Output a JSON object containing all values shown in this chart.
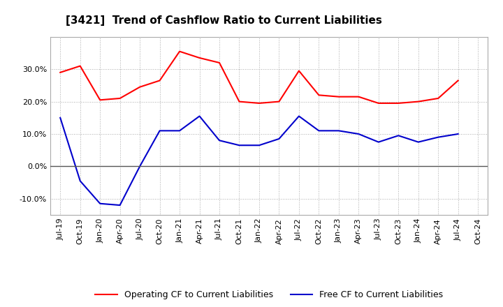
{
  "title": "[3421]  Trend of Cashflow Ratio to Current Liabilities",
  "x_labels": [
    "Jul-19",
    "Oct-19",
    "Jan-20",
    "Apr-20",
    "Jul-20",
    "Oct-20",
    "Jan-21",
    "Apr-21",
    "Jul-21",
    "Oct-21",
    "Jan-22",
    "Apr-22",
    "Jul-22",
    "Oct-22",
    "Jan-23",
    "Apr-23",
    "Jul-23",
    "Oct-23",
    "Jan-24",
    "Apr-24",
    "Jul-24",
    "Oct-24"
  ],
  "operating_cf": [
    0.29,
    0.31,
    0.205,
    0.21,
    0.245,
    0.265,
    0.355,
    0.335,
    0.32,
    0.2,
    0.195,
    0.2,
    0.295,
    0.22,
    0.215,
    0.215,
    0.195,
    0.195,
    0.2,
    0.21,
    0.265,
    null
  ],
  "free_cf": [
    0.15,
    -0.045,
    -0.115,
    -0.12,
    0.0,
    0.11,
    0.11,
    0.155,
    0.08,
    0.065,
    0.065,
    0.085,
    0.155,
    0.11,
    0.11,
    0.1,
    0.075,
    0.095,
    0.075,
    0.09,
    0.1,
    null
  ],
  "operating_color": "#ff0000",
  "free_color": "#0000cc",
  "ylim": [
    -0.15,
    0.4
  ],
  "yticks": [
    -0.1,
    0.0,
    0.1,
    0.2,
    0.3
  ],
  "background_color": "#ffffff",
  "grid_color": "#aaaaaa",
  "zero_line_color": "#555555"
}
